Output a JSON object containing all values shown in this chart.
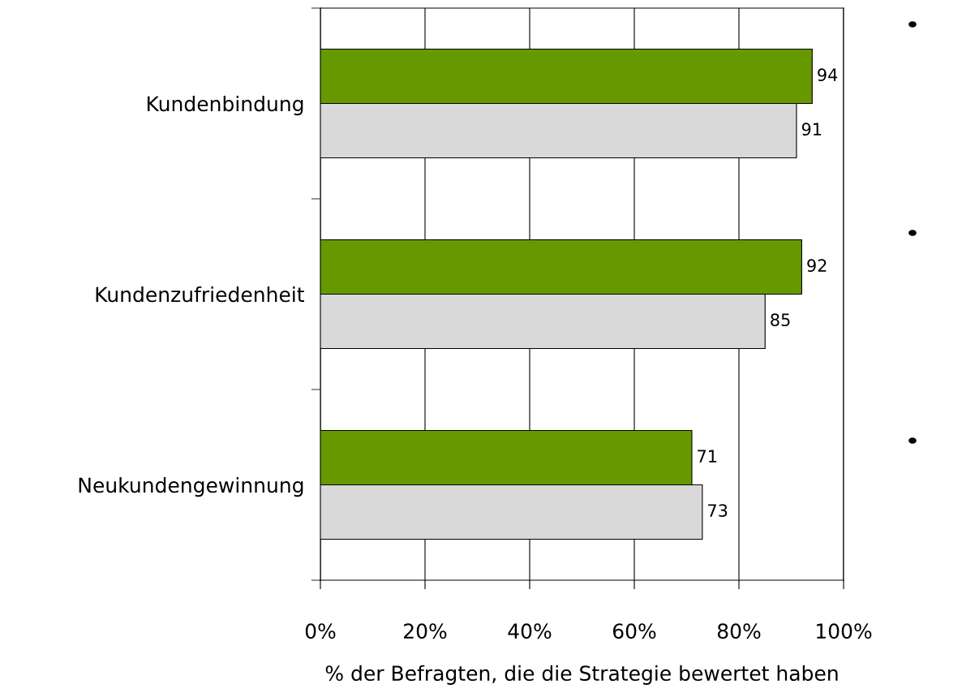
{
  "chart_data": {
    "type": "bar",
    "orientation": "horizontal",
    "xlabel": "% der Befragten, die die Strategie bewertet haben",
    "categories": [
      "Kundenbindung",
      "Kundenzufriedenheit",
      "Neukundengewinnung"
    ],
    "series": [
      {
        "color": "#669900",
        "values": [
          94,
          92,
          71
        ]
      },
      {
        "color": "#d9d9d9",
        "values": [
          91,
          85,
          73
        ]
      }
    ],
    "xlim": [
      0,
      100
    ],
    "xticks": [
      {
        "value": 0,
        "label": "0%"
      },
      {
        "value": 20,
        "label": "20%"
      },
      {
        "value": 40,
        "label": "40%"
      },
      {
        "value": 60,
        "label": "60%"
      },
      {
        "value": 80,
        "label": "80%"
      },
      {
        "value": 100,
        "label": "100%"
      }
    ],
    "grid": "x",
    "data_labels": true
  }
}
